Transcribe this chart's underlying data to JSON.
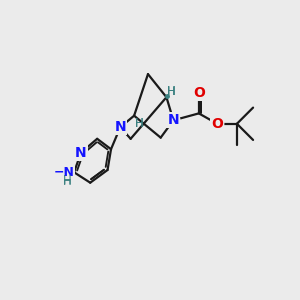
{
  "bg_color": "#ebebeb",
  "bond_color": "#1a1a1a",
  "N_color": "#1414ff",
  "O_color": "#e00000",
  "H_color": "#3a8080",
  "lw": 1.6,
  "figsize": [
    3.0,
    3.0
  ],
  "dpi": 100,
  "xlim": [
    0,
    10
  ],
  "ylim": [
    0,
    10
  ]
}
